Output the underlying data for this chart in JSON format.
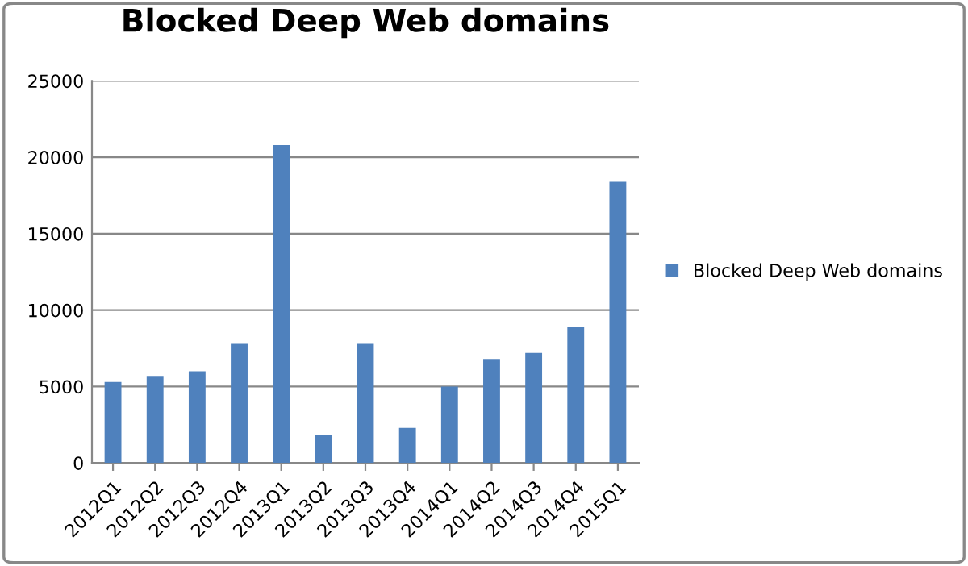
{
  "chart_data": {
    "type": "bar",
    "title": "Blocked Deep Web domains",
    "categories": [
      "2012Q1",
      "2012Q2",
      "2012Q3",
      "2012Q4",
      "2013Q1",
      "2013Q2",
      "2013Q3",
      "2013Q4",
      "2014Q1",
      "2014Q2",
      "2014Q3",
      "2014Q4",
      "2015Q1"
    ],
    "series": [
      {
        "name": "Blocked Deep Web domains",
        "color": "#4f81bd",
        "values": [
          5300,
          5700,
          6000,
          7800,
          20800,
          1800,
          7800,
          2300,
          5000,
          6800,
          7200,
          8900,
          18400
        ]
      }
    ],
    "ylim": [
      0,
      25000
    ],
    "yticks": [
      0,
      5000,
      10000,
      15000,
      20000,
      25000
    ],
    "grid": "y",
    "legend": "right"
  }
}
